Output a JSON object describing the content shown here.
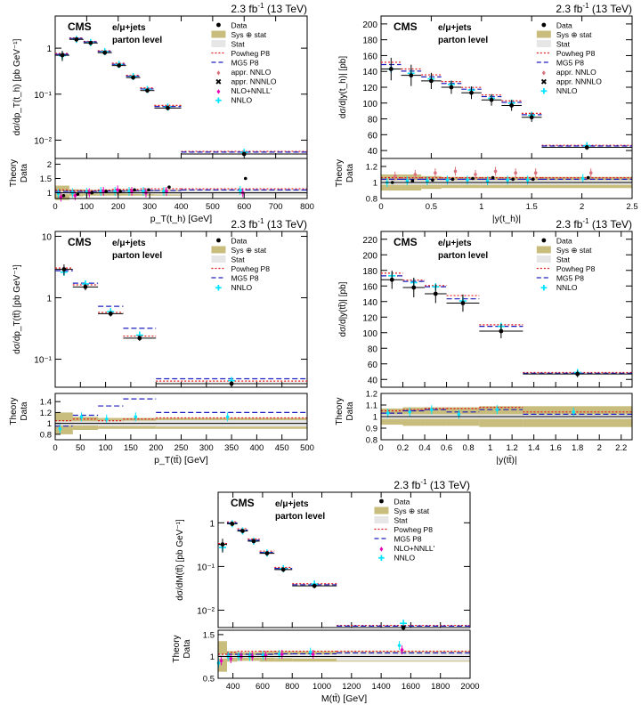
{
  "page": {
    "lumi_prefix": "2.3 fb",
    "lumi_exp": "-1",
    "lumi_energy": "(13 TeV)"
  },
  "labels": {
    "cms": "CMS",
    "channel": "e/μ+jets",
    "level": "parton level",
    "ratio_ylabel_top": "Theory",
    "ratio_ylabel_bottom": "Data"
  },
  "colors": {
    "data": "#000000",
    "sys": "#c8bd7d",
    "stat": "#e6e6e6",
    "powheg": "#e31a1c",
    "mg5": "#1f1fbf",
    "nnlo": "#00e5ff",
    "nnnlo": "#2ca02c",
    "nnll": "#e600b8",
    "apprnnlo": "#d9727c"
  },
  "legend_labels": {
    "data": "Data",
    "sys": "Sys ⊕ stat",
    "stat": "Stat",
    "powheg": "Powheg P8",
    "mg5": "MG5 P8",
    "apprnnlo": "appr. NNLO",
    "apprnnnlo": "appr. NNNLO",
    "nnll": "NLO+NNLL'",
    "nnlo": "NNLO"
  },
  "chart_data": [
    {
      "type": "scatter",
      "id": "pt_th",
      "ylabel": "dσ/dp_T(t_h) [pb GeV⁻¹]",
      "xlabel": "p_T(t_h) [GeV]",
      "log_y": true,
      "ylim": [
        0.004,
        5
      ],
      "xlim": [
        0,
        800
      ],
      "yticks": [
        "1",
        "10⁻¹",
        "10⁻²"
      ],
      "xticks": [
        "0",
        "100",
        "200",
        "300",
        "400",
        "500",
        "600",
        "700",
        "800"
      ],
      "ratio_ylim": [
        0.8,
        2.2
      ],
      "ratio_yticks": [
        "1",
        "1.5",
        "2"
      ],
      "legend": [
        "data",
        "sys",
        "stat",
        "powheg",
        "mg5",
        "apprnnlo",
        "apprnnnlo",
        "nnll",
        "nnlo"
      ],
      "bins": [
        [
          0,
          45
        ],
        [
          45,
          90
        ],
        [
          90,
          135
        ],
        [
          135,
          180
        ],
        [
          180,
          225
        ],
        [
          225,
          270
        ],
        [
          270,
          315
        ],
        [
          315,
          400
        ],
        [
          400,
          800
        ]
      ],
      "data": [
        0.7,
        1.55,
        1.3,
        0.8,
        0.42,
        0.23,
        0.12,
        0.05,
        0.005
      ],
      "ratios": {
        "powheg": [
          1.1,
          1.08,
          1.08,
          1.1,
          1.12,
          1.12,
          1.14,
          1.14,
          1.14
        ],
        "mg5": [
          1.05,
          1.05,
          1.05,
          1.06,
          1.06,
          1.07,
          1.08,
          1.08,
          1.1
        ],
        "nnlo": [
          0.98,
          1.0,
          1.02,
          1.05,
          1.05,
          1.05,
          1.05,
          1.05,
          1.08
        ],
        "apprnnnlo": [
          0.9,
          0.95,
          1.0,
          1.05,
          1.05,
          1.1,
          1.1,
          1.2,
          1.5
        ],
        "nnll": [
          0.85,
          0.9,
          1.0,
          1.05,
          1.1,
          1.05,
          1.0,
          1.05,
          1.0
        ]
      },
      "sys_err": [
        0.25,
        0.12,
        0.1,
        0.1,
        0.1,
        0.1,
        0.1,
        0.1,
        0.1
      ],
      "stat_err": [
        0.05,
        0.03,
        0.03,
        0.03,
        0.03,
        0.04,
        0.05,
        0.06,
        0.1
      ]
    },
    {
      "type": "scatter",
      "id": "y_th",
      "ylabel": "dσ/d|y(t_h)| [pb]",
      "xlabel": "|y(t_h)|",
      "log_y": false,
      "ylim": [
        30,
        210
      ],
      "xlim": [
        0,
        2.5
      ],
      "yticks": [
        "40",
        "60",
        "80",
        "100",
        "120",
        "140",
        "160",
        "180",
        "200"
      ],
      "xticks": [
        "0",
        "0.5",
        "1",
        "1.5",
        "2",
        "2.5"
      ],
      "ratio_ylim": [
        0.8,
        1.3
      ],
      "ratio_yticks": [
        "0.8",
        "1",
        "1.2"
      ],
      "legend": [
        "data",
        "sys",
        "stat",
        "powheg",
        "mg5",
        "apprnnlo",
        "apprnnnlo",
        "nnlo"
      ],
      "bins": [
        [
          0,
          0.2
        ],
        [
          0.2,
          0.4
        ],
        [
          0.4,
          0.6
        ],
        [
          0.6,
          0.8
        ],
        [
          0.8,
          1.0
        ],
        [
          1.0,
          1.2
        ],
        [
          1.2,
          1.4
        ],
        [
          1.4,
          1.6
        ],
        [
          1.6,
          2.5
        ]
      ],
      "data": [
        143,
        135,
        128,
        120,
        113,
        104,
        97,
        82,
        44
      ],
      "ratios": {
        "powheg": [
          1.06,
          1.06,
          1.06,
          1.06,
          1.06,
          1.06,
          1.06,
          1.06,
          1.06
        ],
        "mg5": [
          1.04,
          1.04,
          1.04,
          1.04,
          1.04,
          1.04,
          1.04,
          1.04,
          1.04
        ],
        "nnlo": [
          1.0,
          1.02,
          1.02,
          1.03,
          1.03,
          1.02,
          1.03,
          1.03,
          1.05
        ],
        "apprnnlo": [
          1.08,
          1.1,
          1.12,
          1.14,
          1.1,
          1.14,
          1.12,
          1.12,
          1.12
        ],
        "apprnnnlo": [
          1.0,
          1.02,
          1.03,
          1.04,
          1.05,
          1.06,
          1.04,
          1.04,
          1.06
        ]
      },
      "sys_err": [
        0.1,
        0.1,
        0.08,
        0.07,
        0.07,
        0.07,
        0.07,
        0.07,
        0.07
      ],
      "stat_err": [
        0.03,
        0.03,
        0.03,
        0.03,
        0.03,
        0.03,
        0.03,
        0.03,
        0.03
      ]
    },
    {
      "type": "scatter",
      "id": "pt_tt",
      "ylabel": "dσ/dp_T(tt̄) [pb GeV⁻¹]",
      "xlabel": "p_T(tt̄) [GeV]",
      "log_y": true,
      "ylim": [
        0.035,
        12
      ],
      "xlim": [
        0,
        500
      ],
      "yticks": [
        "10",
        "1",
        "10⁻¹"
      ],
      "xticks": [
        "0",
        "50",
        "100",
        "150",
        "200",
        "250",
        "300",
        "350",
        "400",
        "450",
        "500"
      ],
      "ratio_ylim": [
        0.7,
        1.55
      ],
      "ratio_yticks": [
        "0.8",
        "1",
        "1.2",
        "1.4"
      ],
      "legend": [
        "data",
        "sys",
        "stat",
        "powheg",
        "mg5",
        "nnlo"
      ],
      "bins": [
        [
          0,
          35
        ],
        [
          35,
          85
        ],
        [
          85,
          135
        ],
        [
          135,
          200
        ],
        [
          200,
          500
        ]
      ],
      "data": [
        2.9,
        1.5,
        0.55,
        0.22,
        0.04
      ],
      "ratios": {
        "powheg": [
          1.05,
          1.08,
          1.05,
          1.08,
          1.1
        ],
        "mg5": [
          0.95,
          1.15,
          1.32,
          1.45,
          1.2
        ],
        "nnlo": [
          0.9,
          1.12,
          1.08,
          1.12,
          1.12
        ]
      },
      "sys_err": [
        0.2,
        0.12,
        0.1,
        0.1,
        0.1
      ],
      "stat_err": [
        0.04,
        0.04,
        0.05,
        0.05,
        0.06
      ]
    },
    {
      "type": "scatter",
      "id": "y_tt",
      "ylabel": "dσ/d|y(tt̄)| [pb]",
      "xlabel": "|y(tt̄)|",
      "log_y": false,
      "ylim": [
        30,
        230
      ],
      "xlim": [
        0,
        2.3
      ],
      "yticks": [
        "40",
        "60",
        "80",
        "100",
        "120",
        "140",
        "160",
        "180",
        "200",
        "220"
      ],
      "xticks": [
        "0",
        "0.2",
        "0.4",
        "0.6",
        "0.8",
        "1",
        "1.2",
        "1.4",
        "1.6",
        "1.8",
        "2",
        "2.2"
      ],
      "ratio_ylim": [
        0.8,
        1.2
      ],
      "ratio_yticks": [
        "0.8",
        "0.9",
        "1",
        "1.1",
        "1.2"
      ],
      "legend": [
        "data",
        "sys",
        "stat",
        "powheg",
        "mg5",
        "nnlo"
      ],
      "bins": [
        [
          0,
          0.2
        ],
        [
          0.2,
          0.4
        ],
        [
          0.4,
          0.6
        ],
        [
          0.6,
          0.9
        ],
        [
          0.9,
          1.3
        ],
        [
          1.3,
          2.3
        ]
      ],
      "data": [
        168,
        158,
        150,
        138,
        102,
        47
      ],
      "ratios": {
        "powheg": [
          1.05,
          1.06,
          1.07,
          1.07,
          1.08,
          1.04
        ],
        "mg5": [
          1.03,
          1.05,
          1.06,
          1.04,
          1.06,
          1.02
        ],
        "nnlo": [
          1.03,
          1.04,
          1.06,
          1.02,
          1.06,
          1.04
        ]
      },
      "sys_err": [
        0.07,
        0.08,
        0.08,
        0.08,
        0.09,
        0.09
      ],
      "stat_err": [
        0.02,
        0.02,
        0.02,
        0.02,
        0.02,
        0.02
      ]
    },
    {
      "type": "scatter",
      "id": "m_tt",
      "ylabel": "dσ/dM(tt̄) [pb GeV⁻¹]",
      "xlabel": "M(tt̄) [GeV]",
      "log_y": true,
      "ylim": [
        0.004,
        5
      ],
      "xlim": [
        300,
        2000
      ],
      "yticks": [
        "1",
        "10⁻¹",
        "10⁻²"
      ],
      "xticks": [
        "400",
        "600",
        "800",
        "1000",
        "1200",
        "1400",
        "1600",
        "1800",
        "2000"
      ],
      "ratio_ylim": [
        0.5,
        1.6
      ],
      "ratio_yticks": [
        "0.5",
        "1",
        "1.5"
      ],
      "legend": [
        "data",
        "sys",
        "stat",
        "powheg",
        "mg5",
        "nnll",
        "nnlo"
      ],
      "bins": [
        [
          300,
          360
        ],
        [
          360,
          430
        ],
        [
          430,
          500
        ],
        [
          500,
          580
        ],
        [
          580,
          680
        ],
        [
          680,
          800
        ],
        [
          800,
          1100
        ],
        [
          1100,
          2000
        ]
      ],
      "data": [
        0.32,
        0.95,
        0.65,
        0.38,
        0.2,
        0.085,
        0.036,
        0.004
      ],
      "ratios": {
        "powheg": [
          1.05,
          1.1,
          1.12,
          1.12,
          1.12,
          1.12,
          1.12,
          1.12
        ],
        "mg5": [
          1.0,
          1.05,
          1.05,
          1.05,
          1.05,
          1.06,
          1.06,
          1.08
        ],
        "nnlo": [
          0.85,
          1.0,
          1.0,
          1.0,
          1.02,
          1.05,
          1.1,
          1.25
        ],
        "nnll": [
          0.9,
          0.95,
          1.0,
          1.0,
          1.02,
          1.05,
          1.05,
          1.15
        ]
      },
      "sys_err": [
        0.35,
        0.12,
        0.1,
        0.1,
        0.12,
        0.12,
        0.12,
        0.12
      ],
      "stat_err": [
        0.05,
        0.03,
        0.03,
        0.03,
        0.03,
        0.04,
        0.05,
        0.1
      ]
    }
  ]
}
